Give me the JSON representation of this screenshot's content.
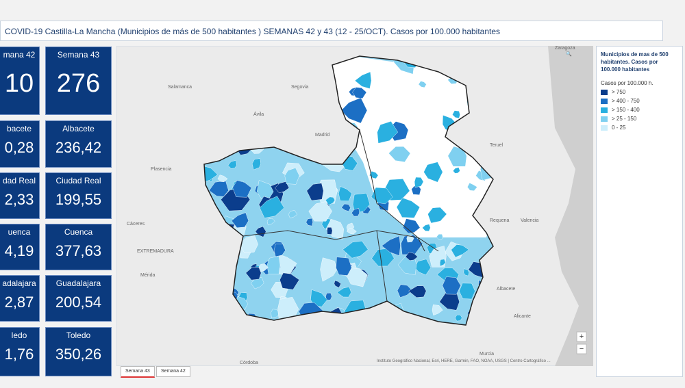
{
  "header": {
    "title": "COVID-19 Castilla-La Mancha (Municipios de más de 500 habitantes ) SEMANAS 42 y 43 (12 - 25/OCT). Casos por 100.000 habitantes"
  },
  "indicators": {
    "week42": [
      {
        "label": "mana 42",
        "value": "10"
      },
      {
        "label": "bacete",
        "value": "0,28"
      },
      {
        "label": "dad Real",
        "value": "2,33"
      },
      {
        "label": "uenca",
        "value": "4,19"
      },
      {
        "label": "adalajara",
        "value": "2,87"
      },
      {
        "label": "ledo",
        "value": "1,76"
      }
    ],
    "week43": [
      {
        "label": "Semana 43",
        "value": "276"
      },
      {
        "label": "Albacete",
        "value": "236,42"
      },
      {
        "label": "Ciudad Real",
        "value": "199,55"
      },
      {
        "label": "Cuenca",
        "value": "377,63"
      },
      {
        "label": "Guadalajara",
        "value": "200,54"
      },
      {
        "label": "Toledo",
        "value": "350,26"
      }
    ]
  },
  "map": {
    "labels": [
      "Madrid",
      "Segovia",
      "Salamanca",
      "Ávila",
      "Plasencia",
      "Cáceres",
      "EXTREMADURA",
      "Mérida",
      "Teruel",
      "Requena",
      "Valencia",
      "Albacete",
      "Murcia",
      "Alicante",
      "Córdoba",
      "Zaragoza"
    ],
    "attribution": "Instituto Geográfico Nacional, Esri, HERE, Garmin, FAO, NOAA, USGS | Centro Cartográfico ...",
    "zoom_in": "+",
    "zoom_out": "−"
  },
  "legend": {
    "title": "Municipios de mas de 500 habitantes. Casos por 100.000 habitantes",
    "subtitle": "Casos por 100.000 h.",
    "items": [
      {
        "label": "> 750",
        "color": "#0b3d8c"
      },
      {
        "label": "> 400 - 750",
        "color": "#1c6fc4"
      },
      {
        "label": "> 150 - 400",
        "color": "#2ab0e0"
      },
      {
        "label": "> 25 - 150",
        "color": "#7fd0f0"
      },
      {
        "label": "0 - 25",
        "color": "#cdeefb"
      }
    ]
  },
  "tabs": [
    "Semana 43",
    "Semana 42"
  ]
}
